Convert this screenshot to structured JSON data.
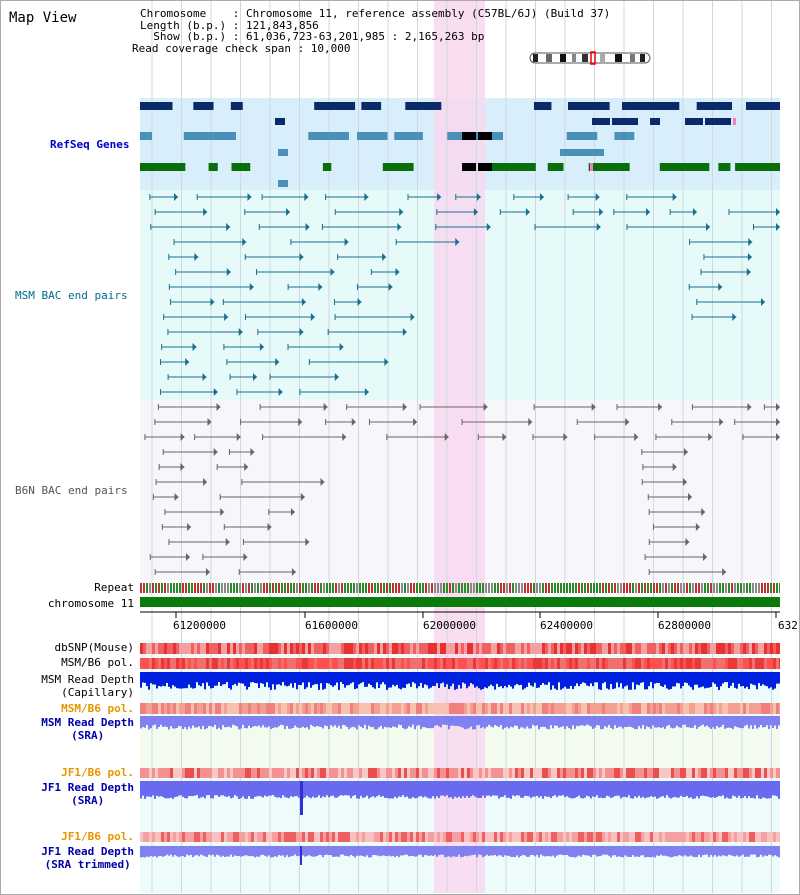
{
  "title": "Map View",
  "header": {
    "chromosome": "Chromosome    : Chromosome 11, reference assembly (C57BL/6J) (Build 37)",
    "length": "Length (b.p.) : 121,843,856",
    "show": "  Show (b.p.) : 61,036,723-63,201,985 : 2,165,263 bp",
    "coverage": "Read coverage check span : 10,000"
  },
  "tracks": {
    "refseq": "RefSeq Genes",
    "msm_bac": "MSM BAC end pairs",
    "b6n_bac": "B6N BAC end pairs",
    "repeat": "Repeat",
    "chromosome": "chromosome 11",
    "dbsnp": "dbSNP(Mouse)",
    "msm_b6_pol": "MSM/B6 pol.",
    "msm_depth_cap": "MSM Read Depth\n(Capillary)",
    "msm_b6_pol2": "MSM/B6 pol.",
    "msm_depth_sra": "MSM Read Depth\n(SRA)",
    "jf1_b6_pol": "JF1/B6 pol.",
    "jf1_depth_sra": "JF1 Read Depth\n(SRA)",
    "jf1_b6_pol2": "JF1/B6 pol.",
    "jf1_depth_trim": "JF1 Read Depth\n(SRA trimmed)"
  },
  "axis": {
    "ticks": [
      "61200000",
      "61600000",
      "62000000",
      "62400000",
      "62800000",
      "632"
    ]
  },
  "colors": {
    "refseq_bg": "#d8eefa",
    "bac_bg": "#e6fafa",
    "b6n_bg": "#f6f6fb",
    "highlight": "#f8d8f0",
    "gene_navy": "#0a2a6a",
    "gene_steel": "#4a90b8",
    "gene_green": "#0a6e0a",
    "chromosome_green": "#0a7a0a"
  }
}
